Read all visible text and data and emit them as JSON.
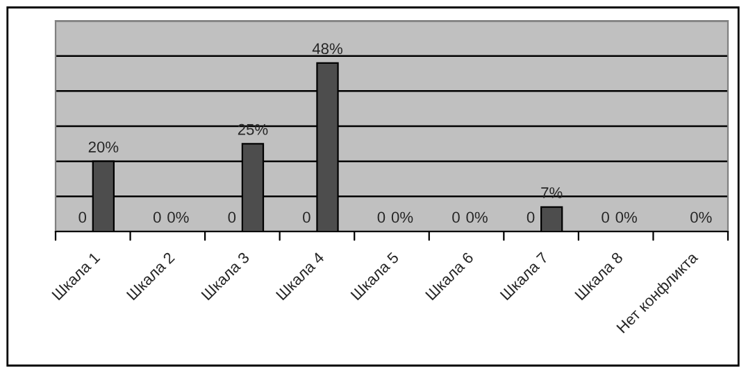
{
  "chart_data": {
    "type": "bar",
    "categories": [
      "Шкала 1",
      "Шкала 2",
      "Шкала 3",
      "Шкала 4",
      "Шкала 5",
      "Шкала 6",
      "Шкала 7",
      "Шкала 8",
      "Нет конфликта"
    ],
    "series": [
      {
        "color": "#4d4d4d",
        "values": [
          0,
          0,
          0,
          0,
          0,
          0,
          0,
          0,
          0
        ],
        "value_labels": [
          "0",
          "0",
          "0",
          "0",
          "0",
          "0",
          "0",
          "0",
          null
        ]
      },
      {
        "color": "#4d4d4d",
        "values": [
          20,
          0,
          25,
          48,
          0,
          0,
          7,
          0,
          0
        ],
        "value_labels": [
          "20%",
          "0%",
          "25%",
          "48%",
          "0%",
          "0%",
          "7%",
          "0%",
          "0%"
        ]
      }
    ],
    "ylim": [
      0,
      60
    ],
    "yticks": [
      {
        "value": 0,
        "label": null
      },
      {
        "value": 10,
        "label": null
      },
      {
        "value": 20,
        "label": null
      },
      {
        "value": 30,
        "label": null
      },
      {
        "value": 40,
        "label": null
      },
      {
        "value": 50,
        "label": null
      },
      {
        "value": 60,
        "label": null
      }
    ],
    "grid": "y",
    "tick_labels": "x",
    "legend": false
  }
}
